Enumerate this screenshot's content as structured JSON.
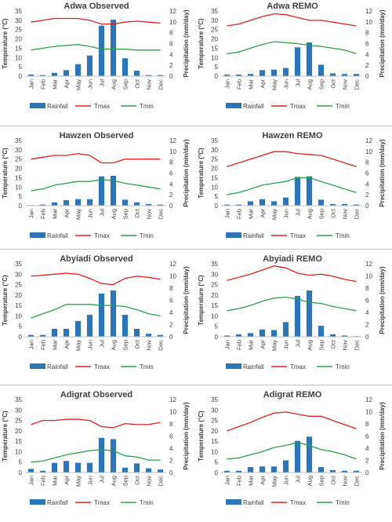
{
  "chart_data": [
    {
      "type": "bar",
      "title": "Adwa Observed",
      "categories": [
        "Jan",
        "Feb",
        "Mar",
        "Apr",
        "May",
        "Jun",
        "Jul",
        "Aug",
        "Sep",
        "Oct",
        "Nov",
        "Dec"
      ],
      "ylabel": "Temperature (°C)",
      "y2label": "Precipitation (mm/day)",
      "ylim": [
        0,
        35
      ],
      "y2lim": [
        0,
        12
      ],
      "yticks": [
        0,
        5,
        10,
        15,
        20,
        25,
        30,
        35
      ],
      "y2ticks": [
        0,
        2,
        4,
        6,
        8,
        10,
        12
      ],
      "legend": "bottom",
      "series": [
        {
          "name": "Rainfall",
          "kind": "bar",
          "axis": "right",
          "color": "#2e75b6",
          "values": [
            0.3,
            0.2,
            0.6,
            1.1,
            2.2,
            3.8,
            9.3,
            10.4,
            3.3,
            1.0,
            0.2,
            0.2
          ]
        },
        {
          "name": "Tmax",
          "kind": "line",
          "axis": "left",
          "color": "#e02020",
          "values": [
            29,
            30,
            31,
            31,
            31,
            30,
            28,
            28,
            29,
            29.5,
            29,
            28.5
          ]
        },
        {
          "name": "Tmin",
          "kind": "line",
          "axis": "left",
          "color": "#2aa04a",
          "values": [
            14,
            15,
            16,
            16.5,
            17,
            16,
            14.5,
            14.5,
            14.5,
            14,
            14,
            14
          ]
        }
      ]
    },
    {
      "type": "bar",
      "title": "Adwa REMO",
      "categories": [
        "Jan",
        "Feb",
        "Mar",
        "Apr",
        "May",
        "Jun",
        "Jul",
        "Aug",
        "Sep",
        "Oct",
        "Nov",
        "Dec"
      ],
      "ylabel": "Temperature (°C)",
      "y2label": "Precipitation (mm/day)",
      "ylim": [
        0,
        35
      ],
      "y2lim": [
        0,
        12
      ],
      "yticks": [
        0,
        5,
        10,
        15,
        20,
        25,
        30,
        35
      ],
      "y2ticks": [
        0,
        2,
        4,
        6,
        8,
        10,
        12
      ],
      "legend": "bottom",
      "series": [
        {
          "name": "Rainfall",
          "kind": "bar",
          "axis": "right",
          "color": "#2e75b6",
          "values": [
            0.3,
            0.3,
            0.4,
            1.1,
            1.2,
            1.5,
            5.3,
            6.2,
            2.1,
            0.5,
            0.4,
            0.4
          ]
        },
        {
          "name": "Tmax",
          "kind": "line",
          "axis": "left",
          "color": "#e02020",
          "values": [
            27,
            28,
            30,
            32,
            33.5,
            33,
            31.5,
            30,
            30,
            29,
            28,
            27
          ]
        },
        {
          "name": "Tmin",
          "kind": "line",
          "axis": "left",
          "color": "#2aa04a",
          "values": [
            12,
            13,
            15,
            17,
            18.5,
            18,
            17.5,
            16.5,
            16,
            15,
            14,
            12
          ]
        }
      ]
    },
    {
      "type": "bar",
      "title": "Hawzen Observed",
      "categories": [
        "Jan",
        "Feb",
        "Mar",
        "Apr",
        "May",
        "Jun",
        "Jul",
        "Aug",
        "Sep",
        "Oct",
        "Nov",
        "Dec"
      ],
      "ylabel": "Temperature (°C)",
      "y2label": "Precipitation (mm/day)",
      "ylim": [
        0,
        35
      ],
      "y2lim": [
        0,
        12
      ],
      "yticks": [
        0,
        5,
        10,
        15,
        20,
        25,
        30,
        35
      ],
      "y2ticks": [
        0,
        2,
        4,
        6,
        8,
        10,
        12
      ],
      "legend": "bottom",
      "series": [
        {
          "name": "Rainfall",
          "kind": "bar",
          "axis": "right",
          "color": "#2e75b6",
          "values": [
            0.1,
            0.2,
            0.6,
            1.0,
            1.2,
            1.2,
            5.4,
            5.5,
            1.1,
            0.6,
            0.3,
            0.2
          ]
        },
        {
          "name": "Tmax",
          "kind": "line",
          "axis": "left",
          "color": "#e02020",
          "values": [
            25,
            26,
            27,
            27,
            28,
            27,
            23,
            23,
            25,
            25,
            25,
            25
          ]
        },
        {
          "name": "Tmin",
          "kind": "line",
          "axis": "left",
          "color": "#2aa04a",
          "values": [
            8,
            9,
            11,
            12,
            13,
            13,
            14,
            13.5,
            12,
            11,
            10,
            9
          ]
        }
      ]
    },
    {
      "type": "bar",
      "title": "Hawzen REMO",
      "categories": [
        "Jan",
        "Feb",
        "Mar",
        "Apr",
        "May",
        "Jun",
        "Jul",
        "Aug",
        "Sep",
        "Oct",
        "Nov",
        "Dec"
      ],
      "ylabel": "Temperature (°C)",
      "y2label": "Precipitation (mm/day)",
      "ylim": [
        0,
        35
      ],
      "y2lim": [
        0,
        12
      ],
      "yticks": [
        0,
        5,
        10,
        15,
        20,
        25,
        30,
        35
      ],
      "y2ticks": [
        0,
        2,
        4,
        6,
        8,
        10,
        12
      ],
      "legend": "bottom",
      "series": [
        {
          "name": "Rainfall",
          "kind": "bar",
          "axis": "right",
          "color": "#2e75b6",
          "values": [
            0.2,
            0.2,
            0.8,
            1.2,
            0.8,
            1.5,
            5.3,
            5.4,
            1.1,
            0.3,
            0.3,
            0.2
          ]
        },
        {
          "name": "Tmax",
          "kind": "line",
          "axis": "left",
          "color": "#e02020",
          "values": [
            21,
            23,
            25,
            27,
            29,
            29,
            28,
            27.5,
            27,
            25,
            23,
            21
          ]
        },
        {
          "name": "Tmin",
          "kind": "line",
          "axis": "left",
          "color": "#2aa04a",
          "values": [
            6,
            7,
            9,
            11,
            12,
            13,
            15,
            15,
            13,
            11,
            9,
            7
          ]
        }
      ]
    },
    {
      "type": "bar",
      "title": "Abyiadi Observed",
      "categories": [
        "Jan",
        "Feb",
        "Mar",
        "Apr",
        "May",
        "Jun",
        "Jul",
        "Aug",
        "Sep",
        "Oct",
        "Nov",
        "Dec"
      ],
      "ylabel": "Temperature (°C)",
      "y2label": "Precipitation (mm/day)",
      "ylim": [
        0,
        35
      ],
      "y2lim": [
        0,
        12
      ],
      "yticks": [
        0,
        5,
        10,
        15,
        20,
        25,
        30,
        35
      ],
      "y2ticks": [
        0,
        2,
        4,
        6,
        8,
        10,
        12
      ],
      "legend": "bottom",
      "series": [
        {
          "name": "Rainfall",
          "kind": "bar",
          "axis": "right",
          "color": "#2e75b6",
          "values": [
            0.3,
            0.3,
            1.3,
            1.3,
            2.6,
            3.6,
            7.1,
            7.6,
            3.6,
            1.3,
            0.5,
            0.3
          ]
        },
        {
          "name": "Tmax",
          "kind": "line",
          "axis": "left",
          "color": "#e02020",
          "values": [
            29,
            29.5,
            30,
            30.5,
            30,
            28,
            25.5,
            25,
            28,
            29,
            28.5,
            27.5
          ]
        },
        {
          "name": "Tmin",
          "kind": "line",
          "axis": "left",
          "color": "#2aa04a",
          "values": [
            9,
            11,
            13,
            15.5,
            15.5,
            15.5,
            15,
            15,
            14.5,
            13,
            11,
            10
          ]
        }
      ]
    },
    {
      "type": "bar",
      "title": "Abyiadi REMO",
      "categories": [
        "Jan",
        "Feb",
        "Mar",
        "Apr",
        "May",
        "Jun",
        "Jul",
        "Aug",
        "Sep",
        "Oct",
        "Nov",
        "Dec"
      ],
      "ylabel": "Temperature (°C)",
      "y2label": "Precipitation (mm/day)",
      "ylim": [
        0,
        35
      ],
      "y2lim": [
        0,
        12
      ],
      "yticks": [
        0,
        5,
        10,
        15,
        20,
        25,
        30,
        35
      ],
      "y2ticks": [
        0,
        2,
        4,
        6,
        8,
        10,
        12
      ],
      "legend": "bottom",
      "series": [
        {
          "name": "Rainfall",
          "kind": "bar",
          "axis": "right",
          "color": "#2e75b6",
          "values": [
            0.2,
            0.4,
            0.6,
            1.2,
            1.1,
            2.4,
            6.7,
            7.6,
            1.8,
            0.4,
            0.2,
            0.1
          ]
        },
        {
          "name": "Tmax",
          "kind": "line",
          "axis": "left",
          "color": "#e02020",
          "values": [
            27,
            28.5,
            30,
            32,
            34,
            33,
            30.5,
            29.5,
            30,
            29,
            27.5,
            26.5
          ]
        },
        {
          "name": "Tmin",
          "kind": "line",
          "axis": "left",
          "color": "#2aa04a",
          "values": [
            12.5,
            13.5,
            15,
            17,
            18.5,
            19,
            18,
            16.5,
            16,
            14.5,
            13.5,
            12.5
          ]
        }
      ]
    },
    {
      "type": "bar",
      "title": "Adigrat Observed",
      "categories": [
        "Jan",
        "Feb",
        "Mar",
        "Apr",
        "May",
        "Jun",
        "Jul",
        "Aug",
        "Sep",
        "Oct",
        "Nov",
        "Dec"
      ],
      "ylabel": "Temperature (°C)",
      "y2label": "Precipitation (mm/day)",
      "ylim": [
        0,
        35
      ],
      "y2lim": [
        0,
        12
      ],
      "yticks": [
        0,
        5,
        10,
        15,
        20,
        25,
        30,
        35
      ],
      "y2ticks": [
        0,
        2,
        4,
        6,
        8,
        10,
        12
      ],
      "legend": "bottom",
      "series": [
        {
          "name": "Rainfall",
          "kind": "bar",
          "axis": "right",
          "color": "#2e75b6",
          "values": [
            0.6,
            0.3,
            1.6,
            1.9,
            1.6,
            1.6,
            5.7,
            5.5,
            0.8,
            1.5,
            0.7,
            0.5
          ]
        },
        {
          "name": "Tmax",
          "kind": "line",
          "axis": "left",
          "color": "#e02020",
          "values": [
            23,
            25,
            25,
            25.5,
            25.5,
            25,
            22,
            21.5,
            23.5,
            23,
            23,
            24
          ]
        },
        {
          "name": "Tmin",
          "kind": "line",
          "axis": "left",
          "color": "#2aa04a",
          "values": [
            5,
            5.5,
            7,
            8.5,
            9.5,
            10.5,
            11,
            10.5,
            8,
            7.5,
            6,
            6
          ]
        }
      ]
    },
    {
      "type": "bar",
      "title": "Adigrat REMO",
      "categories": [
        "Jan",
        "Feb",
        "Mar",
        "Apr",
        "May",
        "Jun",
        "Jul",
        "Aug",
        "Sep",
        "Oct",
        "Nov",
        "Dec"
      ],
      "ylabel": "Temperature (°C)",
      "y2label": "Precipitation (mm/day)",
      "ylim": [
        0,
        35
      ],
      "y2lim": [
        0,
        12
      ],
      "yticks": [
        0,
        5,
        10,
        15,
        20,
        25,
        30,
        35
      ],
      "y2ticks": [
        0,
        2,
        4,
        6,
        8,
        10,
        12
      ],
      "legend": "bottom",
      "series": [
        {
          "name": "Rainfall",
          "kind": "bar",
          "axis": "right",
          "color": "#2e75b6",
          "values": [
            0.3,
            0.3,
            0.9,
            1.0,
            1.0,
            2.0,
            5.2,
            5.9,
            0.9,
            0.4,
            0.3,
            0.3
          ]
        },
        {
          "name": "Tmax",
          "kind": "line",
          "axis": "left",
          "color": "#e02020",
          "values": [
            20,
            22,
            24,
            26.5,
            28.5,
            29,
            28,
            27,
            27,
            25,
            23,
            21
          ]
        },
        {
          "name": "Tmin",
          "kind": "line",
          "axis": "left",
          "color": "#2aa04a",
          "values": [
            6.5,
            7,
            8.5,
            10,
            12,
            13,
            14.5,
            13,
            11,
            10,
            8.5,
            6.5
          ]
        }
      ]
    }
  ]
}
